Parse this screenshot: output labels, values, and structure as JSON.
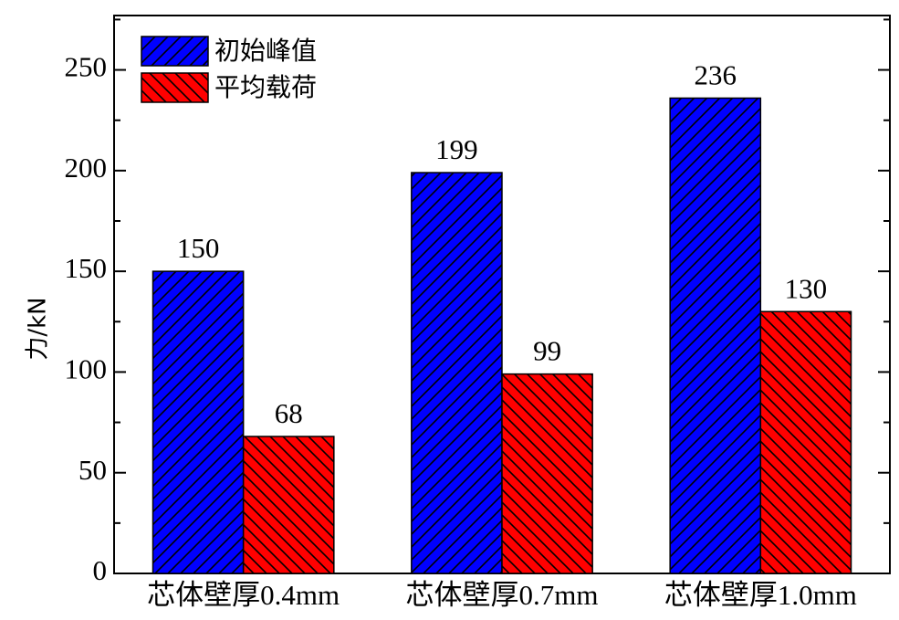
{
  "chart_data": {
    "type": "bar",
    "y_label": "力/kN",
    "categories": [
      "芯体壁厚0.4mm",
      "芯体壁厚0.7mm",
      "芯体壁厚1.0mm"
    ],
    "series": [
      {
        "name": "初始峰值",
        "color": "#0000ff",
        "hatch": "/",
        "values": [
          150,
          199,
          236
        ]
      },
      {
        "name": "平均载荷",
        "color": "#ff0000",
        "hatch": "\\",
        "values": [
          68,
          99,
          130
        ]
      }
    ],
    "ylim": [
      0,
      277
    ],
    "yticks": [
      0,
      50,
      100,
      150,
      200,
      250
    ],
    "legend": "upper left"
  }
}
